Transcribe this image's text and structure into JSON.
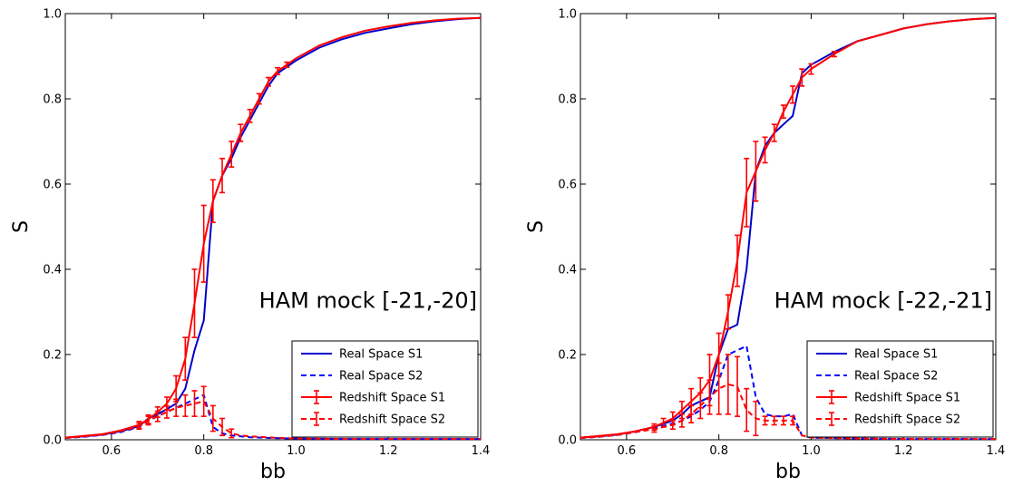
{
  "chart_data": [
    {
      "type": "line",
      "xlabel": "bb",
      "ylabel": "S",
      "xlim": [
        0.5,
        1.4
      ],
      "ylim": [
        0.0,
        1.0
      ],
      "xticks": [
        0.6,
        0.8,
        1.0,
        1.2,
        1.4
      ],
      "xtick_labels": [
        "0.6",
        "0.8",
        "1.0",
        "1.2",
        "1.4"
      ],
      "yticks": [
        0.0,
        0.2,
        0.4,
        0.6,
        0.8,
        1.0
      ],
      "ytick_labels": [
        "0.0",
        "0.2",
        "0.4",
        "0.6",
        "0.8",
        "1.0"
      ],
      "annotation": "HAM mock [-21,-20]",
      "grid": false,
      "legend_position": "bottom-right",
      "series": [
        {
          "name": "Real Space S1",
          "color": "#0000cc",
          "style": "solid",
          "x": [
            0.5,
            0.54,
            0.58,
            0.62,
            0.66,
            0.68,
            0.7,
            0.72,
            0.74,
            0.76,
            0.78,
            0.8,
            0.82,
            0.84,
            0.86,
            0.88,
            0.9,
            0.92,
            0.94,
            0.96,
            0.98,
            1.0,
            1.05,
            1.1,
            1.15,
            1.2,
            1.25,
            1.3,
            1.35,
            1.4
          ],
          "y": [
            0.005,
            0.008,
            0.012,
            0.02,
            0.032,
            0.05,
            0.06,
            0.072,
            0.085,
            0.12,
            0.21,
            0.28,
            0.56,
            0.62,
            0.66,
            0.71,
            0.75,
            0.79,
            0.83,
            0.86,
            0.875,
            0.89,
            0.92,
            0.94,
            0.955,
            0.965,
            0.975,
            0.982,
            0.987,
            0.99
          ]
        },
        {
          "name": "Real Space S2",
          "color": "#0000ff",
          "style": "dashed",
          "x": [
            0.5,
            0.54,
            0.58,
            0.62,
            0.66,
            0.68,
            0.7,
            0.72,
            0.74,
            0.76,
            0.78,
            0.8,
            0.82,
            0.84,
            0.86,
            0.88,
            0.9,
            0.95,
            1.0,
            1.1,
            1.2,
            1.3,
            1.4
          ],
          "y": [
            0.004,
            0.007,
            0.011,
            0.018,
            0.03,
            0.045,
            0.055,
            0.065,
            0.075,
            0.085,
            0.095,
            0.105,
            0.03,
            0.015,
            0.01,
            0.008,
            0.006,
            0.004,
            0.003,
            0.002,
            0.002,
            0.002,
            0.002
          ]
        },
        {
          "name": "Redshift Space S1",
          "color": "#ff0000",
          "style": "solid",
          "x": [
            0.5,
            0.54,
            0.58,
            0.62,
            0.66,
            0.68,
            0.7,
            0.72,
            0.74,
            0.76,
            0.78,
            0.8,
            0.82,
            0.84,
            0.86,
            0.88,
            0.9,
            0.92,
            0.94,
            0.96,
            0.98,
            1.0,
            1.05,
            1.1,
            1.15,
            1.2,
            1.25,
            1.3,
            1.35,
            1.4
          ],
          "y": [
            0.005,
            0.009,
            0.013,
            0.022,
            0.035,
            0.048,
            0.065,
            0.085,
            0.12,
            0.19,
            0.32,
            0.46,
            0.56,
            0.62,
            0.67,
            0.72,
            0.76,
            0.8,
            0.84,
            0.865,
            0.88,
            0.895,
            0.925,
            0.945,
            0.96,
            0.97,
            0.978,
            0.984,
            0.988,
            0.99
          ],
          "err": [
            0.003,
            0.003,
            0.004,
            0.005,
            0.008,
            0.01,
            0.012,
            0.015,
            0.03,
            0.05,
            0.08,
            0.09,
            0.05,
            0.04,
            0.03,
            0.02,
            0.015,
            0.012,
            0.01,
            0.008,
            0.006,
            0.005,
            0.004,
            0.003,
            0.003,
            0.002,
            0.002,
            0.002,
            0.002,
            0.002
          ]
        },
        {
          "name": "Redshift Space S2",
          "color": "#ff0000",
          "style": "dashed",
          "x": [
            0.5,
            0.54,
            0.58,
            0.62,
            0.66,
            0.68,
            0.7,
            0.72,
            0.74,
            0.76,
            0.78,
            0.8,
            0.82,
            0.84,
            0.86,
            0.88,
            0.9,
            0.95,
            1.0,
            1.1,
            1.2,
            1.3,
            1.4
          ],
          "y": [
            0.004,
            0.008,
            0.012,
            0.02,
            0.032,
            0.045,
            0.055,
            0.065,
            0.075,
            0.08,
            0.085,
            0.09,
            0.05,
            0.03,
            0.015,
            0.01,
            0.008,
            0.005,
            0.003,
            0.002,
            0.002,
            0.002,
            0.002
          ],
          "err": [
            0.003,
            0.003,
            0.004,
            0.005,
            0.007,
            0.01,
            0.012,
            0.014,
            0.02,
            0.025,
            0.03,
            0.035,
            0.03,
            0.02,
            0.01,
            0.005,
            0.004,
            0.003,
            0.002,
            0.002,
            0.002,
            0.002,
            0.002
          ]
        }
      ]
    },
    {
      "type": "line",
      "xlabel": "bb",
      "ylabel": "S",
      "xlim": [
        0.5,
        1.4
      ],
      "ylim": [
        0.0,
        1.0
      ],
      "xticks": [
        0.6,
        0.8,
        1.0,
        1.2,
        1.4
      ],
      "xtick_labels": [
        "0.6",
        "0.8",
        "1.0",
        "1.2",
        "1.4"
      ],
      "yticks": [
        0.0,
        0.2,
        0.4,
        0.6,
        0.8,
        1.0
      ],
      "ytick_labels": [
        "0.0",
        "0.2",
        "0.4",
        "0.6",
        "0.8",
        "1.0"
      ],
      "annotation": "HAM mock [-22,-21]",
      "grid": false,
      "legend_position": "bottom-right",
      "series": [
        {
          "name": "Real Space S1",
          "color": "#0000cc",
          "style": "solid",
          "x": [
            0.5,
            0.54,
            0.58,
            0.62,
            0.66,
            0.7,
            0.72,
            0.74,
            0.76,
            0.78,
            0.8,
            0.82,
            0.84,
            0.86,
            0.88,
            0.9,
            0.92,
            0.94,
            0.96,
            0.98,
            1.0,
            1.05,
            1.1,
            1.15,
            1.2,
            1.25,
            1.3,
            1.35,
            1.4
          ],
          "y": [
            0.005,
            0.008,
            0.012,
            0.02,
            0.03,
            0.045,
            0.06,
            0.08,
            0.09,
            0.1,
            0.2,
            0.26,
            0.27,
            0.4,
            0.63,
            0.69,
            0.72,
            0.74,
            0.76,
            0.86,
            0.88,
            0.91,
            0.935,
            0.95,
            0.965,
            0.975,
            0.982,
            0.987,
            0.99
          ]
        },
        {
          "name": "Real Space S2",
          "color": "#0000ff",
          "style": "dashed",
          "x": [
            0.5,
            0.54,
            0.58,
            0.62,
            0.66,
            0.7,
            0.72,
            0.74,
            0.76,
            0.78,
            0.8,
            0.82,
            0.84,
            0.86,
            0.88,
            0.9,
            0.92,
            0.94,
            0.96,
            0.98,
            1.0,
            1.1,
            1.2,
            1.3,
            1.4
          ],
          "y": [
            0.004,
            0.007,
            0.011,
            0.018,
            0.027,
            0.038,
            0.045,
            0.055,
            0.07,
            0.09,
            0.14,
            0.2,
            0.21,
            0.22,
            0.1,
            0.06,
            0.055,
            0.055,
            0.06,
            0.01,
            0.005,
            0.003,
            0.002,
            0.002,
            0.002
          ]
        },
        {
          "name": "Redshift Space S1",
          "color": "#ff0000",
          "style": "solid",
          "x": [
            0.5,
            0.54,
            0.58,
            0.62,
            0.66,
            0.68,
            0.7,
            0.72,
            0.74,
            0.76,
            0.78,
            0.8,
            0.82,
            0.84,
            0.86,
            0.88,
            0.9,
            0.92,
            0.94,
            0.96,
            0.98,
            1.0,
            1.05,
            1.1,
            1.15,
            1.2,
            1.25,
            1.3,
            1.35,
            1.4
          ],
          "y": [
            0.005,
            0.009,
            0.013,
            0.02,
            0.03,
            0.04,
            0.05,
            0.07,
            0.09,
            0.11,
            0.14,
            0.2,
            0.3,
            0.42,
            0.58,
            0.63,
            0.68,
            0.72,
            0.77,
            0.81,
            0.85,
            0.87,
            0.905,
            0.935,
            0.95,
            0.965,
            0.975,
            0.982,
            0.987,
            0.99
          ],
          "err": [
            0.003,
            0.003,
            0.004,
            0.005,
            0.007,
            0.01,
            0.015,
            0.02,
            0.03,
            0.035,
            0.06,
            0.05,
            0.04,
            0.06,
            0.08,
            0.07,
            0.03,
            0.02,
            0.015,
            0.02,
            0.02,
            0.012,
            0.006,
            0.004,
            0.004,
            0.003,
            0.002,
            0.002,
            0.002,
            0.002
          ]
        },
        {
          "name": "Redshift Space S2",
          "color": "#ff0000",
          "style": "dashed",
          "x": [
            0.5,
            0.54,
            0.58,
            0.62,
            0.66,
            0.7,
            0.72,
            0.74,
            0.76,
            0.78,
            0.8,
            0.82,
            0.84,
            0.86,
            0.88,
            0.9,
            0.92,
            0.94,
            0.96,
            0.98,
            1.0,
            1.1,
            1.2,
            1.3,
            1.4
          ],
          "y": [
            0.004,
            0.007,
            0.011,
            0.018,
            0.025,
            0.035,
            0.045,
            0.06,
            0.08,
            0.1,
            0.12,
            0.13,
            0.125,
            0.07,
            0.05,
            0.045,
            0.045,
            0.045,
            0.045,
            0.01,
            0.005,
            0.003,
            0.002,
            0.002,
            0.002
          ],
          "err": [
            0.003,
            0.003,
            0.004,
            0.005,
            0.007,
            0.01,
            0.015,
            0.02,
            0.03,
            0.04,
            0.06,
            0.07,
            0.07,
            0.05,
            0.04,
            0.01,
            0.01,
            0.01,
            0.01,
            0.005,
            0.003,
            0.002,
            0.002,
            0.002,
            0.002
          ]
        }
      ]
    }
  ]
}
